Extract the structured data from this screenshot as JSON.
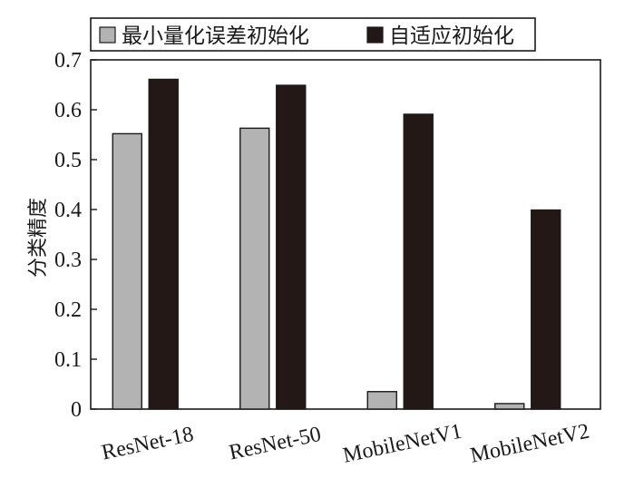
{
  "chart_data": {
    "type": "bar",
    "categories": [
      "ResNet-18",
      "ResNet-50",
      "MobileNetV1",
      "MobileNetV2"
    ],
    "series": [
      {
        "name": "最小量化误差初始化",
        "values": [
          0.552,
          0.563,
          0.035,
          0.011
        ],
        "color": "#b3b3b3"
      },
      {
        "name": "自适应初始化",
        "values": [
          0.661,
          0.649,
          0.591,
          0.399
        ],
        "color": "#231815"
      }
    ],
    "ylabel": "分类精度",
    "xlabel": "",
    "ylim": [
      0,
      0.7
    ],
    "yticks": [
      0,
      0.1,
      0.2,
      0.3,
      0.4,
      0.5,
      0.6,
      0.7
    ],
    "ytick_labels": [
      "0",
      "0.1",
      "0.2",
      "0.3",
      "0.4",
      "0.5",
      "0.6",
      "0.7"
    ],
    "grid": false,
    "legend_position": "top"
  }
}
